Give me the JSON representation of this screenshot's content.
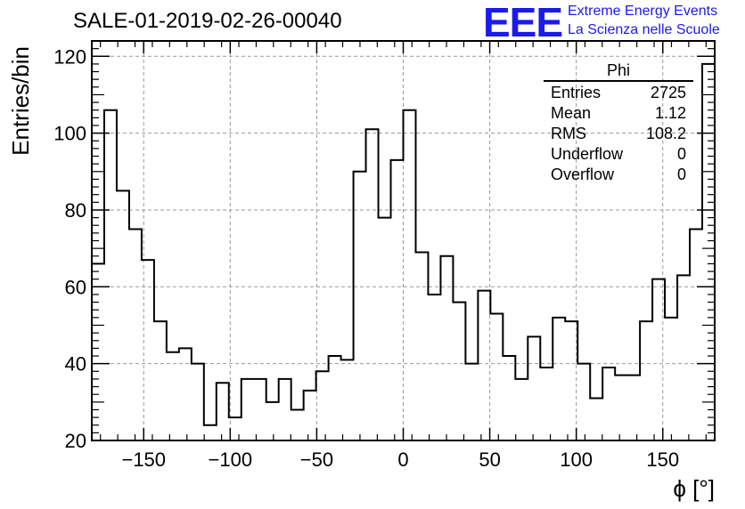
{
  "header": {
    "title": "SALE-01-2019-02-26-00040",
    "logo_text": "EEE",
    "logo_line1": "Extreme Energy Events",
    "logo_line2": "La Scienza nelle Scuole",
    "logo_color": "#1a1aee"
  },
  "stats": {
    "name": "Phi",
    "rows": [
      {
        "label": "Entries",
        "value": "2725"
      },
      {
        "label": "Mean",
        "value": "1.12"
      },
      {
        "label": "RMS",
        "value": "108.2"
      },
      {
        "label": "Underflow",
        "value": "0"
      },
      {
        "label": "Overflow",
        "value": "0"
      }
    ]
  },
  "chart_data": {
    "type": "histogram",
    "title": "SALE-01-2019-02-26-00040",
    "xlabel": "ϕ [°]",
    "ylabel": "Entries/bin",
    "xlim": [
      -180,
      180
    ],
    "ylim": [
      20,
      124
    ],
    "bin_width": 7.2,
    "xticks": [
      -150,
      -100,
      -50,
      0,
      50,
      100,
      150
    ],
    "yticks": [
      20,
      40,
      60,
      80,
      100,
      120
    ],
    "grid": true,
    "line_color": "#000000",
    "values": [
      66,
      106,
      85,
      75,
      67,
      51,
      43,
      44,
      40,
      24,
      35,
      26,
      36,
      36,
      30,
      36,
      28,
      33,
      38,
      42,
      41,
      90,
      101,
      78,
      93,
      106,
      69,
      58,
      68,
      56,
      40,
      59,
      53,
      42,
      36,
      47,
      39,
      52,
      51,
      40,
      31,
      39,
      37,
      37,
      51,
      62,
      52,
      63,
      75,
      118
    ]
  }
}
